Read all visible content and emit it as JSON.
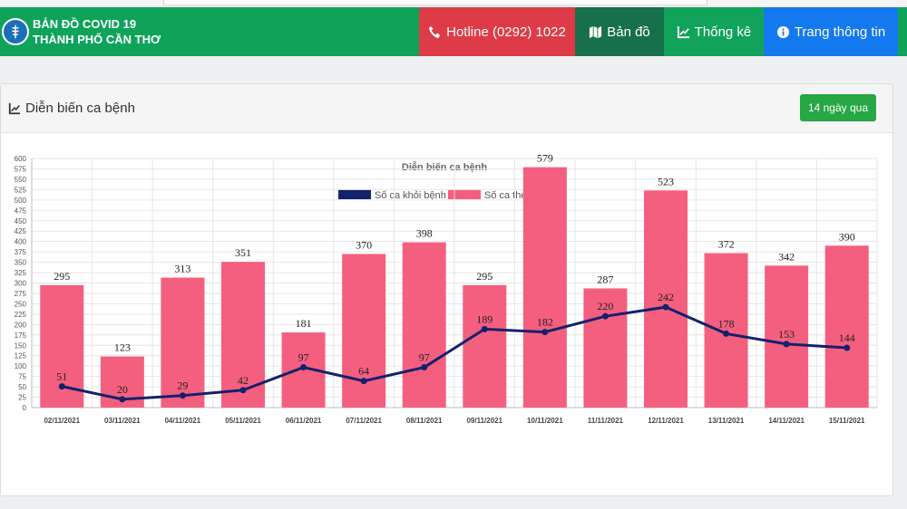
{
  "navbar": {
    "brand_line1": "BẢN ĐỒ COVID 19",
    "brand_line2": "THÀNH PHỐ CẦN THƠ",
    "hotline": "Hotline (0292) 1022",
    "map": "Bản đồ",
    "stats": "Thống kê",
    "info": "Trang thông tin",
    "colors": {
      "brand": "#0fa35a",
      "hotline": "#dd3b47",
      "map": "#17704a",
      "info": "#1478ee"
    }
  },
  "card": {
    "title": "Diễn biến ca bệnh",
    "range_button": "14 ngày qua"
  },
  "chart_data": {
    "type": "bar",
    "title": "Diễn biến ca bệnh",
    "categories": [
      "02/11/2021",
      "03/11/2021",
      "04/11/2021",
      "05/11/2021",
      "06/11/2021",
      "07/11/2021",
      "08/11/2021",
      "09/11/2021",
      "10/11/2021",
      "11/11/2021",
      "12/11/2021",
      "13/11/2021",
      "14/11/2021",
      "15/11/2021"
    ],
    "series": [
      {
        "name": "Số ca khỏi bệnh",
        "type": "line",
        "color": "#14216b",
        "values": [
          51,
          20,
          29,
          42,
          97,
          64,
          97,
          189,
          182,
          220,
          242,
          178,
          153,
          144
        ]
      },
      {
        "name": "Số ca theo ngày",
        "type": "bar",
        "color": "#f45f7f",
        "values": [
          295,
          123,
          313,
          351,
          181,
          370,
          398,
          295,
          579,
          287,
          523,
          372,
          342,
          390
        ]
      }
    ],
    "ylim": [
      0,
      600
    ],
    "yticks": [
      0,
      25,
      50,
      75,
      100,
      125,
      150,
      175,
      200,
      225,
      250,
      275,
      300,
      325,
      350,
      375,
      400,
      425,
      450,
      475,
      500,
      525,
      550,
      575,
      600
    ],
    "grid": true,
    "legend": "top"
  }
}
